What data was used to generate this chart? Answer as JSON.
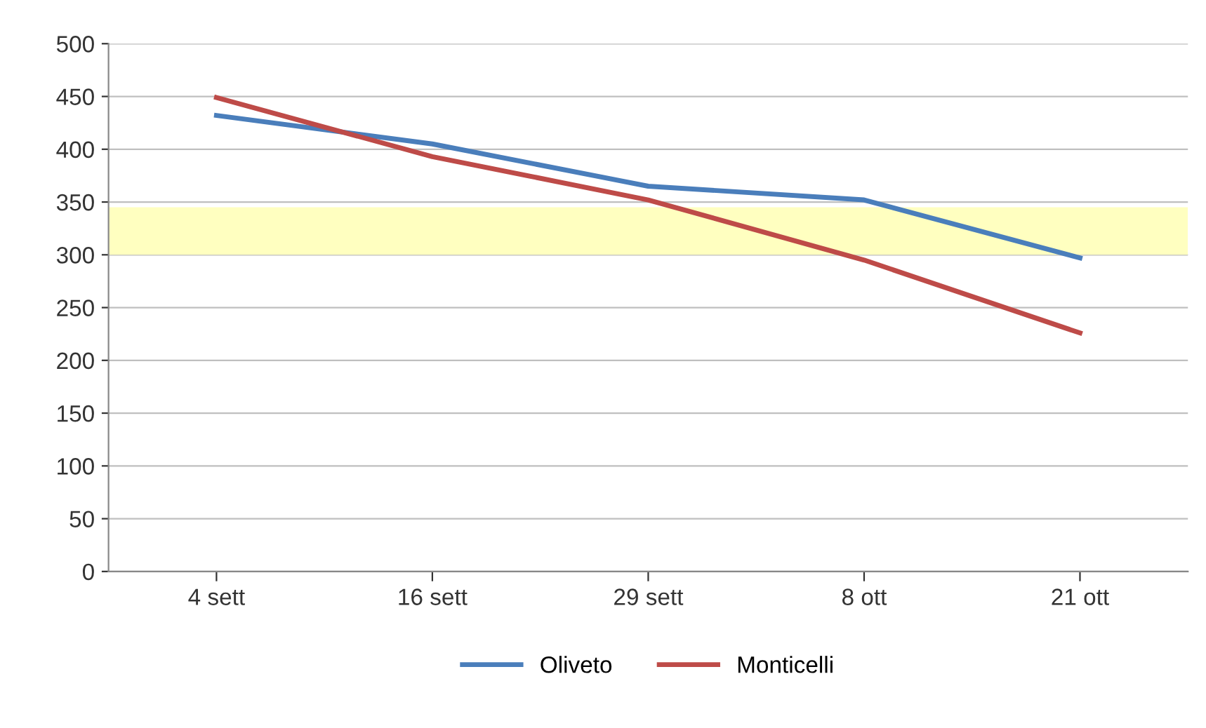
{
  "chart_data": {
    "type": "line",
    "categories": [
      "4 sett",
      "16 sett",
      "29 sett",
      "8 ott",
      "21 ott"
    ],
    "series": [
      {
        "name": "Oliveto",
        "color": "#4a7ebb",
        "values": [
          432,
          405,
          365,
          352,
          297
        ]
      },
      {
        "name": "Monticelli",
        "color": "#be4b48",
        "values": [
          449,
          393,
          352,
          295,
          226
        ]
      }
    ],
    "ylim": [
      0,
      500
    ],
    "yticks": [
      0,
      50,
      100,
      150,
      200,
      250,
      300,
      350,
      400,
      450,
      500
    ],
    "grid": "y",
    "legend": "bottom",
    "marker": "none",
    "line_style": "solid",
    "bands": [
      {
        "axis": "y",
        "from": 300,
        "to": 345,
        "color": "#ffffc0"
      }
    ]
  }
}
